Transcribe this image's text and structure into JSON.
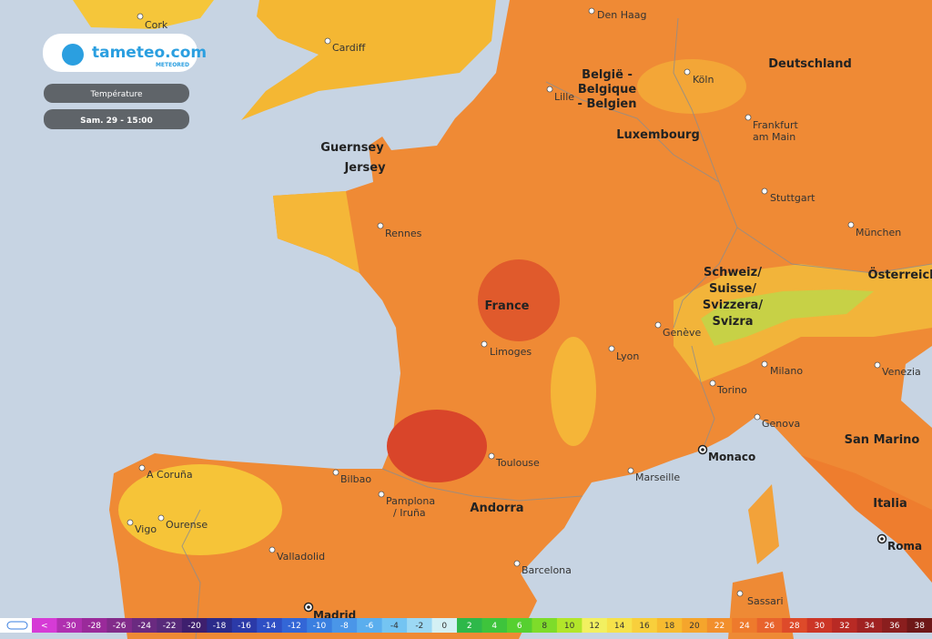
{
  "header": {
    "logo": "tameteo.com",
    "logo_sub": "METEORED",
    "layer": "Température",
    "time": "Sam. 29 - 15:00"
  },
  "places": [
    {
      "lines": [
        "Cork"
      ]
    },
    {
      "lines": [
        "Cardiff"
      ]
    },
    {
      "lines": [
        "Den Haag"
      ]
    },
    {
      "lines": [
        "Lille"
      ]
    },
    {
      "lines": [
        "Köln"
      ]
    },
    {
      "lines": [
        "Frankfurt",
        "am Main"
      ]
    },
    {
      "lines": [
        "Stuttgart"
      ]
    },
    {
      "lines": [
        "München"
      ]
    },
    {
      "lines": [
        "Rennes"
      ]
    },
    {
      "lines": [
        "Limoges"
      ]
    },
    {
      "lines": [
        "Lyon"
      ]
    },
    {
      "lines": [
        "Genève"
      ]
    },
    {
      "lines": [
        "Milano"
      ]
    },
    {
      "lines": [
        "Venezia"
      ]
    },
    {
      "lines": [
        "Torino"
      ]
    },
    {
      "lines": [
        "Genova"
      ]
    },
    {
      "lines": [
        "Monaco"
      ],
      "capital": true
    },
    {
      "lines": [
        "Toulouse"
      ]
    },
    {
      "lines": [
        "Marseille"
      ]
    },
    {
      "lines": [
        "Bilbao"
      ]
    },
    {
      "lines": [
        "Pamplona",
        "/ Iruña"
      ]
    },
    {
      "lines": [
        "A Coruña"
      ]
    },
    {
      "lines": [
        "Vigo"
      ]
    },
    {
      "lines": [
        "Ourense"
      ]
    },
    {
      "lines": [
        "Valladolid"
      ]
    },
    {
      "lines": [
        "Barcelona"
      ]
    },
    {
      "lines": [
        "Madrid"
      ],
      "capital": true
    },
    {
      "lines": [
        "Sassari"
      ]
    },
    {
      "lines": [
        "Roma"
      ],
      "capital": true
    }
  ],
  "regions": [
    {
      "lines": [
        "Guernsey"
      ]
    },
    {
      "lines": [
        "Jersey"
      ]
    },
    {
      "lines": [
        "France"
      ]
    },
    {
      "lines": [
        "België -",
        "Belgique",
        "- Belgien"
      ]
    },
    {
      "lines": [
        "Luxembourg"
      ]
    },
    {
      "lines": [
        "Deutschland"
      ]
    },
    {
      "lines": [
        "Schweiz/",
        "Suisse/",
        "Svizzera/",
        "Svizra"
      ]
    },
    {
      "lines": [
        "Österreich"
      ]
    },
    {
      "lines": [
        "Andorra"
      ]
    },
    {
      "lines": [
        "San Marino"
      ]
    },
    {
      "lines": [
        "Italia"
      ]
    }
  ],
  "legend": {
    "items": [
      {
        "label": "<",
        "color": "#d63bd6"
      },
      {
        "label": -30,
        "color": "#b030b0"
      },
      {
        "label": -28,
        "color": "#9a2a9a"
      },
      {
        "label": -26,
        "color": "#822b8a"
      },
      {
        "label": -24,
        "color": "#6a2a80"
      },
      {
        "label": -22,
        "color": "#582a7a"
      },
      {
        "label": -20,
        "color": "#3e1f6e"
      },
      {
        "label": -18,
        "color": "#2b2b8a"
      },
      {
        "label": -16,
        "color": "#2b3aa8"
      },
      {
        "label": -14,
        "color": "#2f4fc4"
      },
      {
        "label": -12,
        "color": "#3366d6"
      },
      {
        "label": -10,
        "color": "#3a7fe0"
      },
      {
        "label": -8,
        "color": "#4a96e8"
      },
      {
        "label": -6,
        "color": "#5aaeee"
      },
      {
        "label": -4,
        "color": "#74c4f2"
      },
      {
        "label": -2,
        "color": "#9cd8f4"
      },
      {
        "label": 0,
        "color": "#d4f0f4"
      },
      {
        "label": 2,
        "color": "#2eb84a"
      },
      {
        "label": 4,
        "color": "#3ec43c"
      },
      {
        "label": 6,
        "color": "#56d030"
      },
      {
        "label": 8,
        "color": "#7edc2a"
      },
      {
        "label": 10,
        "color": "#b2e62a"
      },
      {
        "label": 12,
        "color": "#f2f060"
      },
      {
        "label": 14,
        "color": "#f6e24a"
      },
      {
        "label": 16,
        "color": "#f8cf3c"
      },
      {
        "label": 18,
        "color": "#f7bb30"
      },
      {
        "label": 20,
        "color": "#f5a52c"
      },
      {
        "label": 22,
        "color": "#f28f2c"
      },
      {
        "label": 24,
        "color": "#ee7a2c"
      },
      {
        "label": 26,
        "color": "#e8632c"
      },
      {
        "label": 28,
        "color": "#de4a2a"
      },
      {
        "label": 30,
        "color": "#cc3526"
      },
      {
        "label": 32,
        "color": "#b82a24"
      },
      {
        "label": 34,
        "color": "#a02222"
      },
      {
        "label": 36,
        "color": "#8a1e1e"
      },
      {
        "label": 38,
        "color": "#6e1818"
      }
    ]
  }
}
